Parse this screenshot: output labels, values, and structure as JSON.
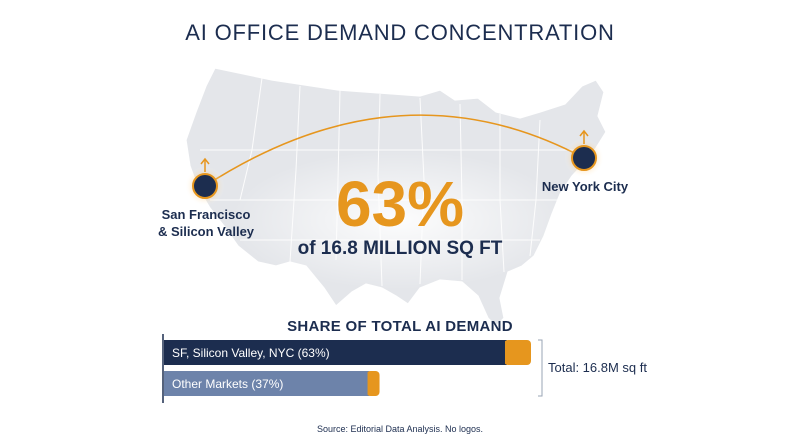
{
  "title": "AI OFFICE DEMAND CONCENTRATION",
  "highlight": {
    "value": "63%",
    "subtitle": "of 16.8 MILLION SQ FT"
  },
  "locations": [
    {
      "name": "San Francisco\n& Silicon Valley"
    },
    {
      "name": "New York City"
    }
  ],
  "colors": {
    "navy": "#1c2d4f",
    "orange": "#e6961e",
    "slate": "#6d83aa",
    "map": "#e4e6ea"
  },
  "chart_data": {
    "type": "bar",
    "orientation": "horizontal",
    "title": "SHARE OF TOTAL AI DEMAND",
    "categories": [
      "SF, Silicon Valley, NYC (63%)",
      "Other Markets (37%)"
    ],
    "values": [
      63,
      37
    ],
    "unit": "%",
    "total_label": "Total: 16.8M sq ft"
  },
  "source": "Source: Editorial Data Analysis. No logos."
}
